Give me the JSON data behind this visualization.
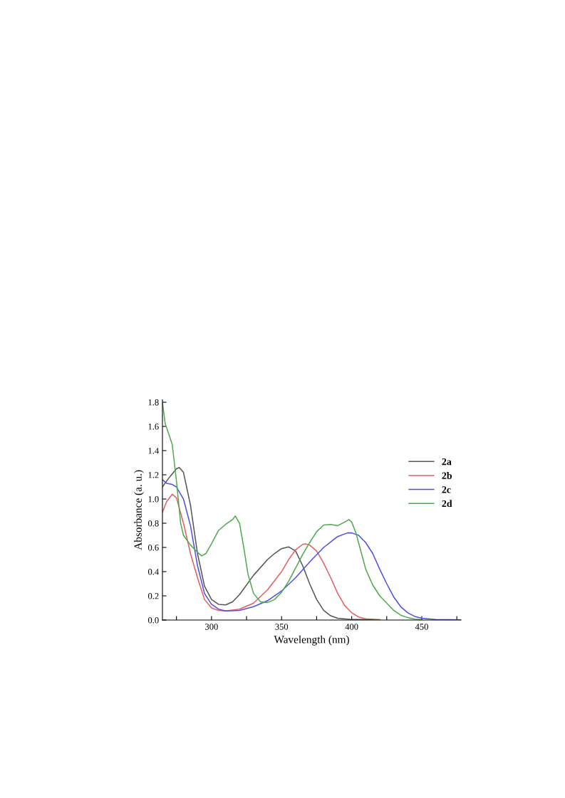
{
  "chart_data": {
    "type": "line",
    "xlabel": "Wavelength (nm)",
    "ylabel": "Absorbance (a. u.)",
    "xlim": [
      265,
      478
    ],
    "ylim": [
      0,
      1.82
    ],
    "xticks": [
      {
        "value": 275,
        "label": null
      },
      300,
      {
        "value": 325,
        "label": null
      },
      350,
      {
        "value": 375,
        "label": null
      },
      400,
      {
        "value": 425,
        "label": null
      },
      450,
      {
        "value": 475,
        "label": null
      }
    ],
    "yticks": [
      {
        "value": 0,
        "label": "0.0"
      },
      0.2,
      0.4,
      0.6,
      0.8,
      {
        "value": 1,
        "label": "1.0"
      },
      1.2,
      1.4,
      1.6,
      1.8
    ],
    "grid": false,
    "legend": "right",
    "line_style": "solid",
    "marker": "none",
    "series": [
      {
        "name": "2a",
        "color": "#555555",
        "x": [
          265,
          270,
          275,
          277,
          280,
          285,
          290,
          295,
          300,
          305,
          310,
          315,
          320,
          330,
          340,
          345,
          350,
          355,
          360,
          365,
          370,
          375,
          380,
          385,
          390,
          400,
          420
        ],
        "values": [
          1.1,
          1.18,
          1.25,
          1.26,
          1.22,
          0.95,
          0.55,
          0.28,
          0.17,
          0.13,
          0.125,
          0.15,
          0.21,
          0.37,
          0.5,
          0.55,
          0.59,
          0.605,
          0.57,
          0.45,
          0.3,
          0.17,
          0.08,
          0.035,
          0.015,
          0.005,
          0.002
        ]
      },
      {
        "name": "2b",
        "color": "#e06060",
        "x": [
          265,
          268,
          272,
          275,
          280,
          285,
          290,
          295,
          300,
          305,
          310,
          320,
          330,
          340,
          350,
          355,
          360,
          365,
          367,
          370,
          375,
          380,
          385,
          390,
          395,
          400,
          405,
          410,
          420
        ],
        "values": [
          0.89,
          0.98,
          1.04,
          1.01,
          0.8,
          0.55,
          0.35,
          0.17,
          0.1,
          0.08,
          0.075,
          0.09,
          0.14,
          0.25,
          0.4,
          0.5,
          0.58,
          0.625,
          0.63,
          0.62,
          0.57,
          0.47,
          0.35,
          0.22,
          0.12,
          0.06,
          0.025,
          0.01,
          0.003
        ]
      },
      {
        "name": "2c",
        "color": "#5050dd",
        "x": [
          265,
          268,
          272,
          275,
          280,
          285,
          290,
          295,
          300,
          305,
          310,
          320,
          330,
          340,
          350,
          360,
          370,
          380,
          390,
          397,
          400,
          405,
          410,
          415,
          420,
          425,
          430,
          435,
          440,
          445,
          450,
          460,
          478
        ],
        "values": [
          1.16,
          1.13,
          1.12,
          1.1,
          1.0,
          0.78,
          0.45,
          0.22,
          0.13,
          0.09,
          0.075,
          0.08,
          0.11,
          0.16,
          0.24,
          0.35,
          0.48,
          0.6,
          0.69,
          0.72,
          0.72,
          0.7,
          0.64,
          0.55,
          0.42,
          0.3,
          0.19,
          0.11,
          0.06,
          0.03,
          0.015,
          0.005,
          0.002
        ]
      },
      {
        "name": "2d",
        "color": "#50a850",
        "x": [
          265,
          267,
          270,
          272,
          275,
          278,
          280,
          285,
          290,
          293,
          296,
          300,
          305,
          310,
          315,
          317,
          320,
          323,
          326,
          330,
          335,
          340,
          345,
          350,
          355,
          360,
          365,
          370,
          375,
          380,
          385,
          390,
          395,
          398,
          400,
          403,
          407,
          410,
          415,
          420,
          425,
          430,
          435,
          440,
          445,
          450
        ],
        "values": [
          1.8,
          1.62,
          1.52,
          1.45,
          1.15,
          0.8,
          0.7,
          0.62,
          0.56,
          0.53,
          0.55,
          0.63,
          0.74,
          0.79,
          0.83,
          0.86,
          0.8,
          0.6,
          0.38,
          0.22,
          0.15,
          0.145,
          0.17,
          0.23,
          0.32,
          0.43,
          0.54,
          0.64,
          0.73,
          0.785,
          0.79,
          0.78,
          0.81,
          0.83,
          0.81,
          0.72,
          0.55,
          0.42,
          0.29,
          0.2,
          0.14,
          0.08,
          0.04,
          0.02,
          0.008,
          0.003
        ]
      }
    ]
  }
}
